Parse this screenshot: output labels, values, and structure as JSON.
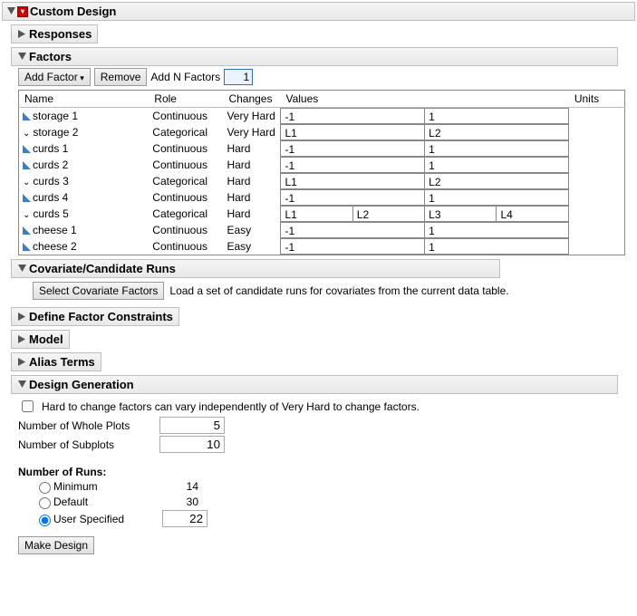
{
  "title": "Custom Design",
  "sections": {
    "responses": "Responses",
    "factors": "Factors",
    "covariate": "Covariate/Candidate Runs",
    "constraints": "Define Factor Constraints",
    "model": "Model",
    "alias": "Alias Terms",
    "design_gen": "Design Generation"
  },
  "factors_toolbar": {
    "add_factor": "Add Factor",
    "remove": "Remove",
    "add_n_label": "Add N Factors",
    "add_n_value": "1"
  },
  "factor_columns": {
    "name": "Name",
    "role": "Role",
    "changes": "Changes",
    "values": "Values",
    "units": "Units"
  },
  "factors": [
    {
      "icon": "tri",
      "name": "storage 1",
      "role": "Continuous",
      "changes": "Very Hard",
      "values": [
        "-1",
        "1"
      ]
    },
    {
      "icon": "chev",
      "name": "storage 2",
      "role": "Categorical",
      "changes": "Very Hard",
      "values": [
        "L1",
        "L2"
      ]
    },
    {
      "icon": "tri",
      "name": "curds 1",
      "role": "Continuous",
      "changes": "Hard",
      "values": [
        "-1",
        "1"
      ]
    },
    {
      "icon": "tri",
      "name": "curds 2",
      "role": "Continuous",
      "changes": "Hard",
      "values": [
        "-1",
        "1"
      ]
    },
    {
      "icon": "chev",
      "name": "curds 3",
      "role": "Categorical",
      "changes": "Hard",
      "values": [
        "L1",
        "L2"
      ]
    },
    {
      "icon": "tri",
      "name": "curds 4",
      "role": "Continuous",
      "changes": "Hard",
      "values": [
        "-1",
        "1"
      ]
    },
    {
      "icon": "chev",
      "name": "curds 5",
      "role": "Categorical",
      "changes": "Hard",
      "values": [
        "L1",
        "L2",
        "L3",
        "L4"
      ]
    },
    {
      "icon": "tri",
      "name": "cheese 1",
      "role": "Continuous",
      "changes": "Easy",
      "values": [
        "-1",
        "1"
      ]
    },
    {
      "icon": "tri",
      "name": "cheese 2",
      "role": "Continuous",
      "changes": "Easy",
      "values": [
        "-1",
        "1"
      ]
    }
  ],
  "covariate": {
    "button": "Select Covariate Factors",
    "hint": "Load a set of candidate runs for covariates from the current data table."
  },
  "design_gen": {
    "checkbox_label": "Hard to change factors can vary independently of Very Hard to change factors.",
    "whole_plots_label": "Number of Whole Plots",
    "whole_plots_value": "5",
    "subplots_label": "Number of Subplots",
    "subplots_value": "10",
    "runs_heading": "Number of Runs:",
    "runs": [
      {
        "label": "Minimum",
        "value": "14",
        "checked": false
      },
      {
        "label": "Default",
        "value": "30",
        "checked": false
      },
      {
        "label": "User Specified",
        "value": "22",
        "checked": true,
        "editable": true
      }
    ],
    "make_design": "Make Design"
  }
}
